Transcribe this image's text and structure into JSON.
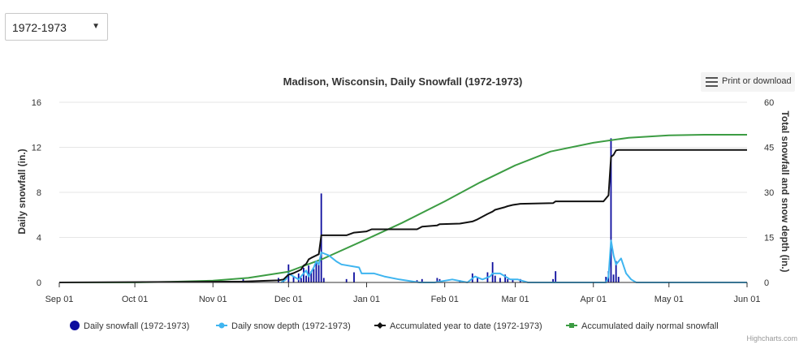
{
  "controls": {
    "season_selected": "1972-1973",
    "menu_label": "Print or download",
    "credits": "Highcharts.com"
  },
  "icons": {
    "caret": "caret-down-icon",
    "menu": "hamburger-menu-icon"
  },
  "colors": {
    "daily_snowfall": "#0d0d9e",
    "snow_depth": "#3fb5f0",
    "accumulated": "#111111",
    "normal": "#3c9c43"
  },
  "chart_data": {
    "type": "bar",
    "title": "Madison, Wisconsin, Daily Snowfall (1972-1973)",
    "ylabel": "Daily snowfall (in.)",
    "ylabel_right": "Total snowfall and snow depth (in.)",
    "ylim": [
      0,
      16
    ],
    "ylim_right": [
      0,
      60
    ],
    "y_ticks": [
      "0",
      "4",
      "8",
      "12",
      "16"
    ],
    "y_right_ticks": [
      "0",
      "15",
      "30",
      "45",
      "60"
    ],
    "xlim": [
      "1972-09-01",
      "1973-06-01"
    ],
    "x_ticks": [
      "Sep 01",
      "Oct 01",
      "Nov 01",
      "Dec 01",
      "Jan 01",
      "Feb 01",
      "Mar 01",
      "Apr 01",
      "May 01",
      "Jun 01"
    ],
    "legend_position": "bottom",
    "series": [
      {
        "name": "Daily snowfall (1972-1973)",
        "type": "bar",
        "axis": "left",
        "points": [
          [
            "1972-11-13",
            0.3
          ],
          [
            "1972-11-27",
            0.4
          ],
          [
            "1972-11-29",
            0.3
          ],
          [
            "1972-12-01",
            1.6
          ],
          [
            "1972-12-03",
            0.5
          ],
          [
            "1972-12-05",
            0.8
          ],
          [
            "1972-12-06",
            0.4
          ],
          [
            "1972-12-07",
            1.3
          ],
          [
            "1972-12-08",
            0.6
          ],
          [
            "1972-12-09",
            1.5
          ],
          [
            "1972-12-10",
            1.0
          ],
          [
            "1972-12-11",
            1.2
          ],
          [
            "1972-12-12",
            1.8
          ],
          [
            "1972-12-13",
            1.6
          ],
          [
            "1972-12-14",
            7.9
          ],
          [
            "1972-12-15",
            0.4
          ],
          [
            "1972-12-24",
            0.3
          ],
          [
            "1972-12-27",
            0.9
          ],
          [
            "1973-01-21",
            0.2
          ],
          [
            "1973-01-23",
            0.3
          ],
          [
            "1973-01-29",
            0.4
          ],
          [
            "1973-01-30",
            0.3
          ],
          [
            "1973-02-07",
            0.2
          ],
          [
            "1973-02-12",
            0.8
          ],
          [
            "1973-02-14",
            0.5
          ],
          [
            "1973-02-18",
            0.9
          ],
          [
            "1973-02-20",
            1.8
          ],
          [
            "1973-02-21",
            0.6
          ],
          [
            "1973-02-23",
            0.4
          ],
          [
            "1973-02-25",
            0.7
          ],
          [
            "1973-02-26",
            0.3
          ],
          [
            "1973-02-28",
            0.3
          ],
          [
            "1973-03-03",
            0.3
          ],
          [
            "1973-03-16",
            0.3
          ],
          [
            "1973-03-17",
            1.0
          ],
          [
            "1973-04-06",
            0.5
          ],
          [
            "1973-04-07",
            1.0
          ],
          [
            "1973-04-08",
            12.8
          ],
          [
            "1973-04-09",
            0.7
          ],
          [
            "1973-04-10",
            1.9
          ],
          [
            "1973-04-11",
            0.5
          ]
        ]
      },
      {
        "name": "Daily snow depth (1972-1973)",
        "type": "line",
        "axis": "right",
        "points": [
          [
            "1972-11-28",
            0
          ],
          [
            "1972-11-30",
            1
          ],
          [
            "1972-12-01",
            3
          ],
          [
            "1972-12-03",
            2
          ],
          [
            "1972-12-05",
            1
          ],
          [
            "1972-12-07",
            3
          ],
          [
            "1972-12-08",
            4
          ],
          [
            "1972-12-09",
            2
          ],
          [
            "1972-12-11",
            5
          ],
          [
            "1972-12-12",
            7
          ],
          [
            "1972-12-13",
            6
          ],
          [
            "1972-12-14",
            10
          ],
          [
            "1972-12-17",
            9
          ],
          [
            "1972-12-20",
            7
          ],
          [
            "1972-12-22",
            6
          ],
          [
            "1972-12-29",
            5
          ],
          [
            "1972-12-30",
            3
          ],
          [
            "1973-01-04",
            3
          ],
          [
            "1973-01-08",
            2
          ],
          [
            "1973-01-14",
            1
          ],
          [
            "1973-01-22",
            0
          ],
          [
            "1973-01-28",
            0
          ],
          [
            "1973-02-04",
            1
          ],
          [
            "1973-02-10",
            0
          ],
          [
            "1973-02-13",
            2
          ],
          [
            "1973-02-16",
            1
          ],
          [
            "1973-02-19",
            2
          ],
          [
            "1973-02-20",
            3
          ],
          [
            "1973-02-23",
            3
          ],
          [
            "1973-02-27",
            1
          ],
          [
            "1973-03-02",
            1
          ],
          [
            "1973-03-06",
            0
          ],
          [
            "1973-04-06",
            0
          ],
          [
            "1973-04-07",
            2
          ],
          [
            "1973-04-08",
            14
          ],
          [
            "1973-04-09",
            9
          ],
          [
            "1973-04-10",
            6
          ],
          [
            "1973-04-12",
            8
          ],
          [
            "1973-04-14",
            3
          ],
          [
            "1973-04-16",
            1
          ],
          [
            "1973-04-18",
            0
          ],
          [
            "1973-06-01",
            0
          ]
        ]
      },
      {
        "name": "Accumulated year to date (1972-1973)",
        "type": "line",
        "axis": "right",
        "points": [
          [
            "1972-09-01",
            0
          ],
          [
            "1972-11-13",
            0.3
          ],
          [
            "1972-11-27",
            0.7
          ],
          [
            "1972-11-29",
            1.0
          ],
          [
            "1972-12-01",
            2.6
          ],
          [
            "1972-12-03",
            3.1
          ],
          [
            "1972-12-05",
            3.9
          ],
          [
            "1972-12-06",
            4.3
          ],
          [
            "1972-12-07",
            5.6
          ],
          [
            "1972-12-08",
            6.2
          ],
          [
            "1972-12-09",
            7.7
          ],
          [
            "1972-12-10",
            8.2
          ],
          [
            "1972-12-11",
            8.6
          ],
          [
            "1972-12-12",
            9.0
          ],
          [
            "1972-12-13",
            9.4
          ],
          [
            "1972-12-14",
            15.7
          ],
          [
            "1972-12-24",
            15.7
          ],
          [
            "1972-12-27",
            16.6
          ],
          [
            "1973-01-01",
            17.0
          ],
          [
            "1973-01-03",
            17.7
          ],
          [
            "1973-01-21",
            17.7
          ],
          [
            "1973-01-23",
            18.6
          ],
          [
            "1973-01-29",
            19.0
          ],
          [
            "1973-01-30",
            19.4
          ],
          [
            "1973-02-07",
            19.6
          ],
          [
            "1973-02-12",
            20.3
          ],
          [
            "1973-02-14",
            21.0
          ],
          [
            "1973-02-18",
            22.8
          ],
          [
            "1973-02-20",
            23.6
          ],
          [
            "1973-02-21",
            24.2
          ],
          [
            "1973-02-25",
            25.1
          ],
          [
            "1973-02-26",
            25.4
          ],
          [
            "1973-02-28",
            25.8
          ],
          [
            "1973-03-03",
            26.2
          ],
          [
            "1973-03-16",
            26.4
          ],
          [
            "1973-03-17",
            27.0
          ],
          [
            "1973-04-05",
            27.0
          ],
          [
            "1973-04-06",
            28.0
          ],
          [
            "1973-04-07",
            29.0
          ],
          [
            "1973-04-08",
            41.8
          ],
          [
            "1973-04-09",
            42.5
          ],
          [
            "1973-04-10",
            44.0
          ],
          [
            "1973-04-11",
            44.1
          ],
          [
            "1973-06-01",
            44.1
          ]
        ]
      },
      {
        "name": "Accumulated daily normal snowfall",
        "type": "line",
        "axis": "right",
        "points": [
          [
            "1972-09-01",
            0
          ],
          [
            "1972-10-01",
            0
          ],
          [
            "1972-10-15",
            0.2
          ],
          [
            "1972-11-01",
            0.6
          ],
          [
            "1972-11-15",
            1.5
          ],
          [
            "1972-12-01",
            3.6
          ],
          [
            "1972-12-15",
            8.0
          ],
          [
            "1973-01-01",
            14.4
          ],
          [
            "1973-01-15",
            19.8
          ],
          [
            "1973-02-01",
            27.0
          ],
          [
            "1973-02-15",
            33.3
          ],
          [
            "1973-03-01",
            39.0
          ],
          [
            "1973-03-15",
            43.6
          ],
          [
            "1973-04-01",
            46.5
          ],
          [
            "1973-04-15",
            48.2
          ],
          [
            "1973-05-01",
            49.0
          ],
          [
            "1973-05-15",
            49.2
          ],
          [
            "1973-06-01",
            49.2
          ]
        ]
      }
    ]
  }
}
